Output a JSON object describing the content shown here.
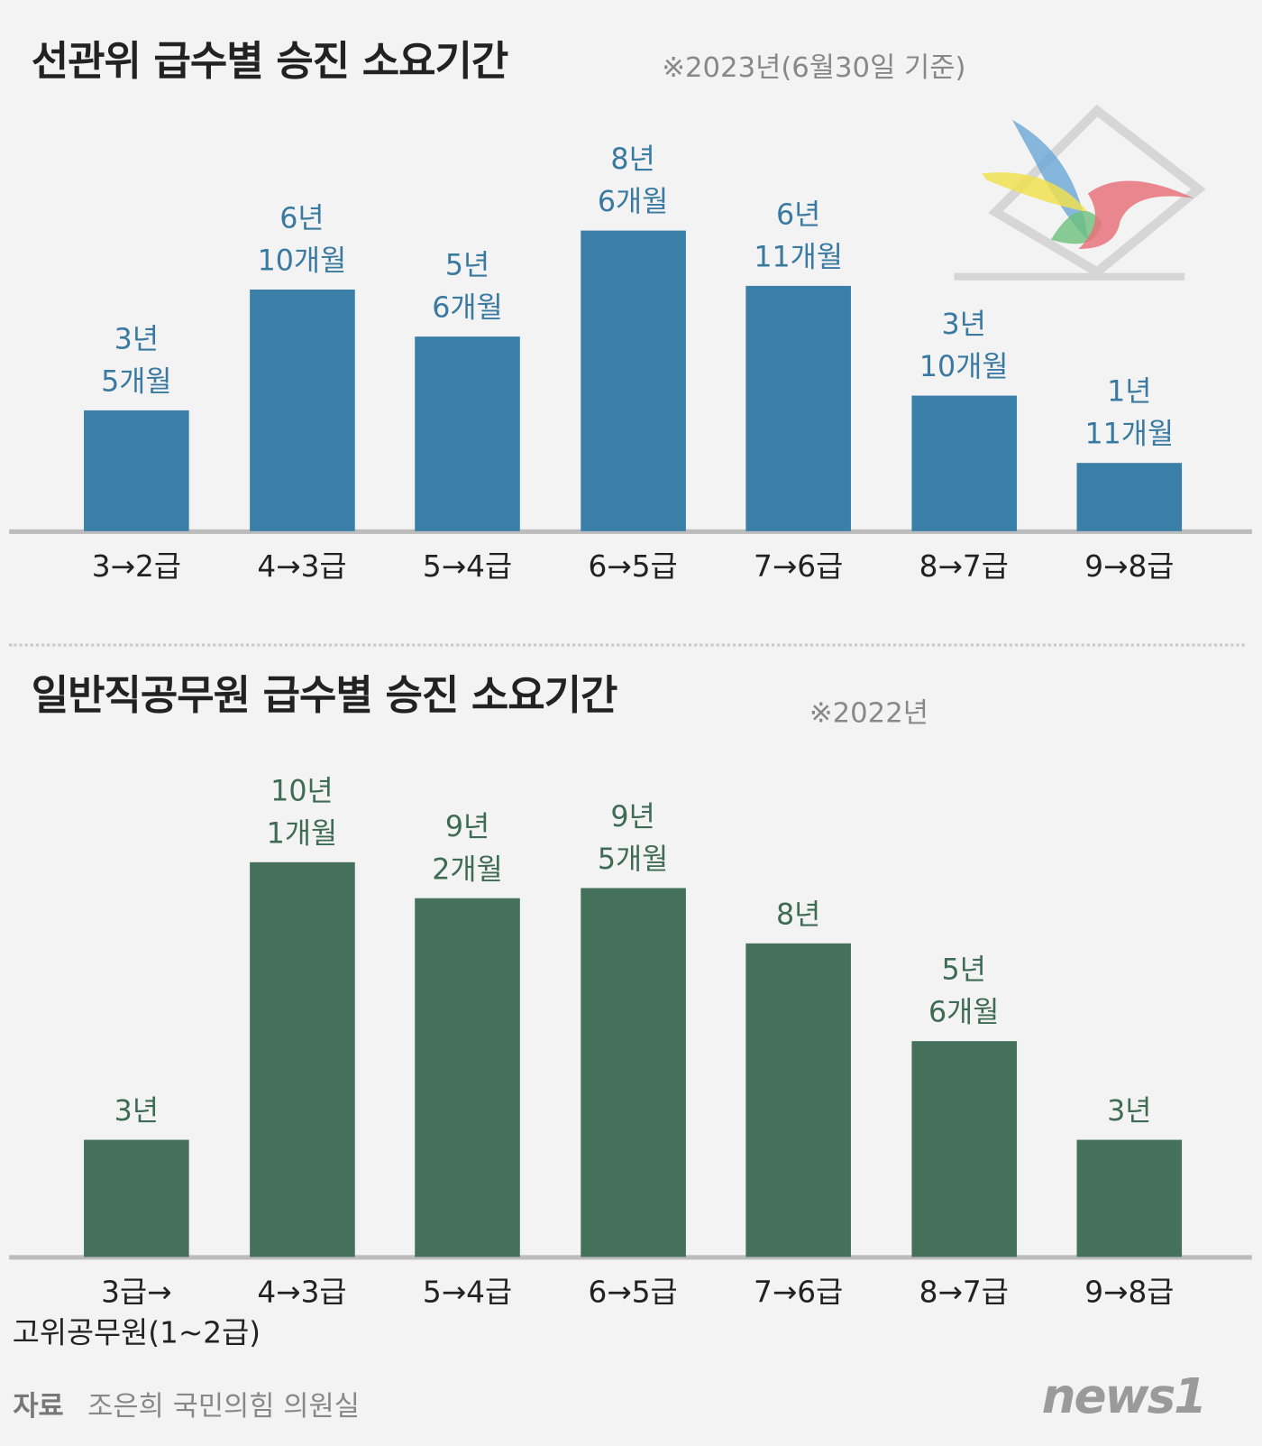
{
  "chart_data": [
    {
      "type": "bar",
      "title": "선관위 급수별 승진 소요기간",
      "subtitle": "※2023년(6월30일 기준)",
      "categories": [
        "3→2급",
        "4→3급",
        "5→4급",
        "6→5급",
        "7→6급",
        "8→7급",
        "9→8급"
      ],
      "values": [
        41,
        82,
        66,
        102,
        83,
        46,
        23
      ],
      "value_labels": [
        "3년\n5개월",
        "6년\n10개월",
        "5년\n6개월",
        "8년\n6개월",
        "6년\n11개월",
        "3년\n10개월",
        "1년\n11개월"
      ],
      "color": "#3a7fa8",
      "label_color": "#3a7aa0"
    },
    {
      "type": "bar",
      "title": "일반직공무원 급수별 승진 소요기간",
      "subtitle": "※2022년",
      "categories": [
        "3급→\n고위공무원(1~2급)",
        "4→3급",
        "5→4급",
        "6→5급",
        "7→6급",
        "8→7급",
        "9→8급"
      ],
      "values": [
        36,
        121,
        110,
        113,
        96,
        66,
        36
      ],
      "value_labels": [
        "3년",
        "10년\n1개월",
        "9년\n2개월",
        "9년\n5개월",
        "8년",
        "5년\n6개월",
        "3년"
      ],
      "color": "#44705c",
      "label_color": "#3f6b55"
    }
  ],
  "source": {
    "label": "자료",
    "text": "조은희 국민의힘 의원실"
  },
  "logo": "news1"
}
